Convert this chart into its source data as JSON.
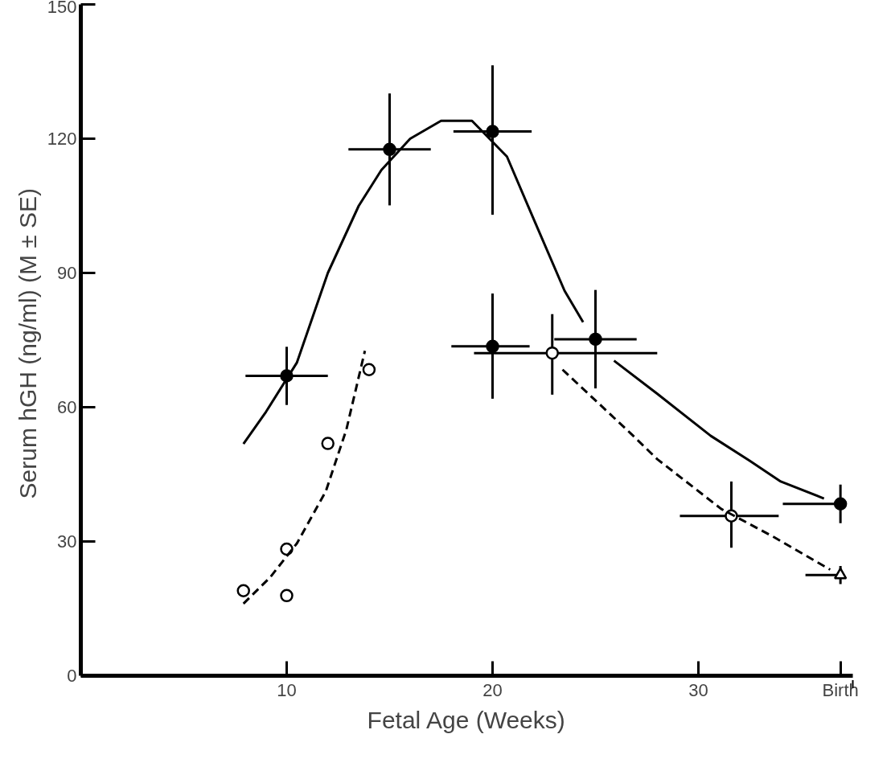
{
  "chart_data": {
    "type": "scatter",
    "xlabel": "Fetal Age (Weeks)",
    "ylabel": "Serum hGH (ng/ml)  (M ± SE)",
    "xlim": [
      0,
      37.5
    ],
    "ylim": [
      0,
      150
    ],
    "xticks": [
      10,
      20,
      30,
      {
        "value": 36.9,
        "label": "Birth"
      }
    ],
    "yticks": [
      0,
      30,
      60,
      90,
      120,
      150
    ],
    "grid": false,
    "series": [
      {
        "marker": "circle",
        "color": "#000000",
        "colors": [
          "#000000",
          "#000000",
          "#000000",
          "#000000",
          "#000000"
        ],
        "x": [
          10,
          15,
          20,
          25,
          36.9
        ],
        "values": [
          67,
          117.6,
          121.6,
          75.2,
          38.4
        ],
        "errors": [
          6.5,
          12.5,
          [
            103,
            136.4
          ],
          11,
          4.3
        ],
        "xerrors": [
          2,
          2,
          1.9,
          2,
          [
            34.1,
            36.9
          ]
        ]
      },
      {
        "marker": "circle",
        "color": "#000000",
        "colors": [
          "#000000"
        ],
        "x": [
          20
        ],
        "values": [
          73.6
        ],
        "errors": [
          [
            61.9,
            85.4
          ]
        ],
        "xerrors": [
          [
            18,
            21.8
          ]
        ]
      },
      {
        "marker": "circle",
        "color": "#000000",
        "colors": [
          "#ffffff",
          "#ffffff"
        ],
        "x": [
          22.9,
          31.6
        ],
        "values": [
          72.1,
          35.7
        ],
        "errors": [
          [
            62.8,
            80.8
          ],
          [
            28.6,
            43.4
          ]
        ],
        "xerrors": [
          [
            19.1,
            28
          ],
          [
            29.1,
            33.9
          ]
        ]
      },
      {
        "marker": "triangle",
        "color": "#000000",
        "colors": [
          "#ffffff"
        ],
        "x": [
          36.9
        ],
        "values": [
          22.5
        ],
        "errors": [
          2
        ],
        "xerrors": [
          [
            35.2,
            36.9
          ]
        ]
      },
      {
        "marker": "circle",
        "color": "#000000",
        "colors": [
          "#ffffff",
          "#ffffff",
          "#ffffff",
          "#ffffff",
          "#ffffff"
        ],
        "x": [
          7.9,
          10,
          10,
          12,
          14
        ],
        "values": [
          19,
          28.3,
          17.9,
          51.9,
          68.4
        ]
      },
      {
        "type": "line",
        "line_style": "solid",
        "color": "#000000",
        "x": [
          7.9,
          9,
          10.5,
          12,
          13.5,
          14.6,
          16,
          17.5,
          19,
          20.7,
          22,
          23.5,
          24.4
        ],
        "values": [
          51.8,
          59,
          70,
          90,
          105,
          113,
          120,
          124,
          124,
          116,
          102,
          86,
          79
        ]
      },
      {
        "type": "line",
        "line_style": "solid",
        "color": "#000000",
        "x": [
          25.9,
          28,
          30.6,
          32.5,
          34,
          36.1
        ],
        "values": [
          70.4,
          63,
          53.6,
          48,
          43.4,
          39.6
        ]
      },
      {
        "type": "line",
        "line_style": "dashed",
        "color": "#000000",
        "x": [
          23.4,
          26.7,
          28,
          31.1,
          33.7,
          36.4
        ],
        "values": [
          68.4,
          54.2,
          48.4,
          37.3,
          30.9,
          23.7
        ]
      },
      {
        "type": "line",
        "line_style": "dashed",
        "color": "#000000",
        "x": [
          7.9,
          9.2,
          10.5,
          11.9,
          12.9,
          13.8
        ],
        "values": [
          16.1,
          22,
          29.6,
          41.2,
          55,
          72.6
        ]
      }
    ]
  }
}
